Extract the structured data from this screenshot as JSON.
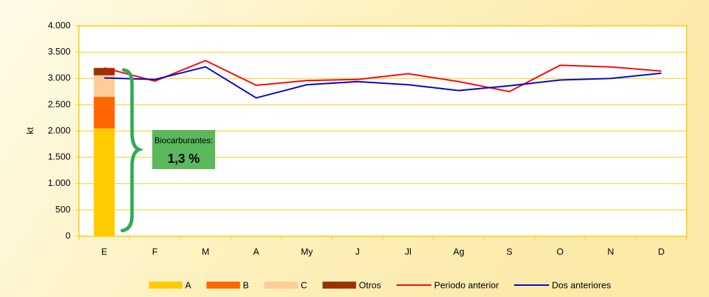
{
  "chart_data": {
    "type": "bar",
    "y_label": "kt",
    "categories": [
      "E",
      "F",
      "M",
      "A",
      "My",
      "J",
      "Jl",
      "Ag",
      "S",
      "O",
      "N",
      "D"
    ],
    "series": [
      {
        "name": "A",
        "type": "bar",
        "color": "#ffcc00",
        "values": [
          2050,
          null,
          null,
          null,
          null,
          null,
          null,
          null,
          null,
          null,
          null,
          null
        ]
      },
      {
        "name": "B",
        "type": "bar",
        "color": "#ff6600",
        "values": [
          600,
          null,
          null,
          null,
          null,
          null,
          null,
          null,
          null,
          null,
          null,
          null
        ]
      },
      {
        "name": "C",
        "type": "bar",
        "color": "#ffcc99",
        "values": [
          410,
          null,
          null,
          null,
          null,
          null,
          null,
          null,
          null,
          null,
          null,
          null
        ]
      },
      {
        "name": "Otros",
        "type": "bar",
        "color": "#993300",
        "values": [
          140,
          null,
          null,
          null,
          null,
          null,
          null,
          null,
          null,
          null,
          null,
          null
        ]
      },
      {
        "name": "Periodo anterior",
        "type": "line",
        "color": "#ff0000",
        "values": [
          3200,
          2950,
          3340,
          2870,
          2960,
          2980,
          3090,
          2940,
          2750,
          3250,
          3220,
          3140
        ]
      },
      {
        "name": "Dos anteriores",
        "type": "line",
        "color": "#0000cc",
        "values": [
          3010,
          2980,
          3220,
          2630,
          2880,
          2940,
          2880,
          2770,
          2860,
          2970,
          3000,
          3100
        ]
      }
    ],
    "ylim": [
      0,
      4000
    ],
    "yticks": [
      0,
      500,
      {
        "value": 1000,
        "label": "1.000"
      },
      {
        "value": 1500,
        "label": "1.500"
      },
      {
        "value": 2000,
        "label": "2.000"
      },
      {
        "value": 2500,
        "label": "2.500"
      },
      {
        "value": 3000,
        "label": "3.000"
      },
      {
        "value": 3500,
        "label": "3.500"
      },
      {
        "value": 4000,
        "label": "4.000"
      }
    ],
    "grid": true,
    "annotations": [
      "Biocarburantes:",
      "1,3 %"
    ]
  }
}
